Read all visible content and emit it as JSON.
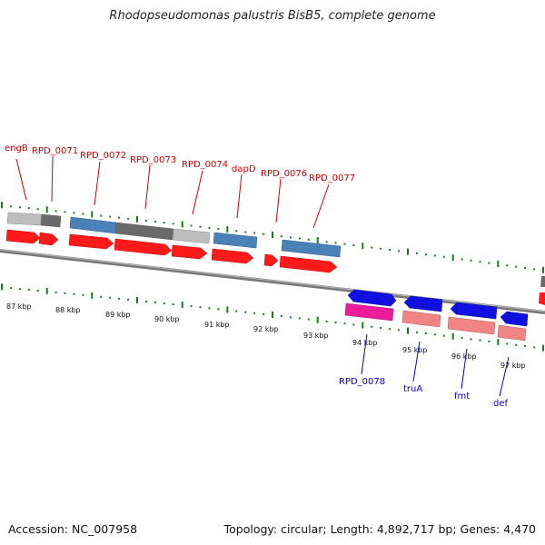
{
  "title": "Rhodopseudomonas palustris BisB5, complete genome",
  "footer": {
    "accession": "Accession: NC_007958",
    "topology": "Topology: circular; Length: 4,892,717 bp; Genes: 4,470"
  },
  "colors": {
    "top_label": "#cc0000",
    "bottom_label": "#0000cc",
    "tick": "#1a7a1a",
    "cds_red": "#ff1a1a",
    "gene_steelblue": "#4a82b8",
    "gene_grey_light": "#bdbdbd",
    "gene_grey_dark": "#6a6a6a",
    "gene_blue": "#1010e0",
    "gene_magenta": "#ee1c9c",
    "gene_salmon": "#f08484",
    "backbone": "#777777"
  },
  "kbp_labels": [
    "87 kbp",
    "88 kbp",
    "89 kbp",
    "90 kbp",
    "91 kbp",
    "92 kbp",
    "93 kbp",
    "94 kbp",
    "95 kbp",
    "96 kbp",
    "97 kbp"
  ],
  "top_gene_labels": [
    "engB",
    "RPD_0071",
    "RPD_0072",
    "RPD_0073",
    "RPD_0074",
    "dapD",
    "RPD_0076",
    "RPD_0077"
  ],
  "bottom_gene_labels": [
    "RPD_0078",
    "truA",
    "fmt",
    "def"
  ]
}
